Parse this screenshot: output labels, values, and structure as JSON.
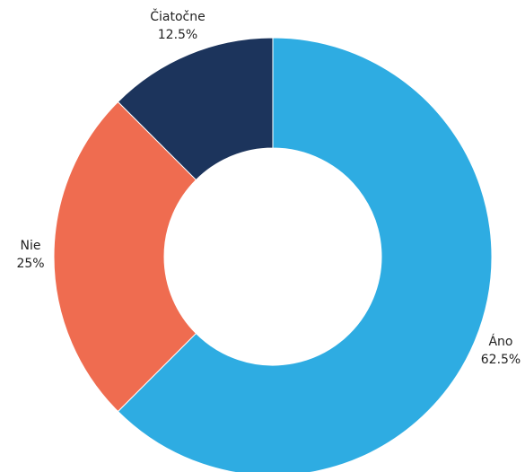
{
  "chart_data": {
    "type": "pie",
    "variant": "donut",
    "title": "",
    "legend": "none",
    "series": [
      {
        "values": [
          62.5,
          25,
          12.5
        ]
      }
    ],
    "categories": [
      "Áno",
      "Nie",
      "Čiatočne"
    ],
    "slices": [
      {
        "label": "Áno",
        "value": 62.5,
        "display": "62.5%",
        "color": "#2eace2"
      },
      {
        "label": "Nie",
        "value": 25,
        "display": "25%",
        "color": "#ef6c50"
      },
      {
        "label": "Čiatočne",
        "value": 12.5,
        "display": "12.5%",
        "color": "#1c345c"
      }
    ]
  }
}
